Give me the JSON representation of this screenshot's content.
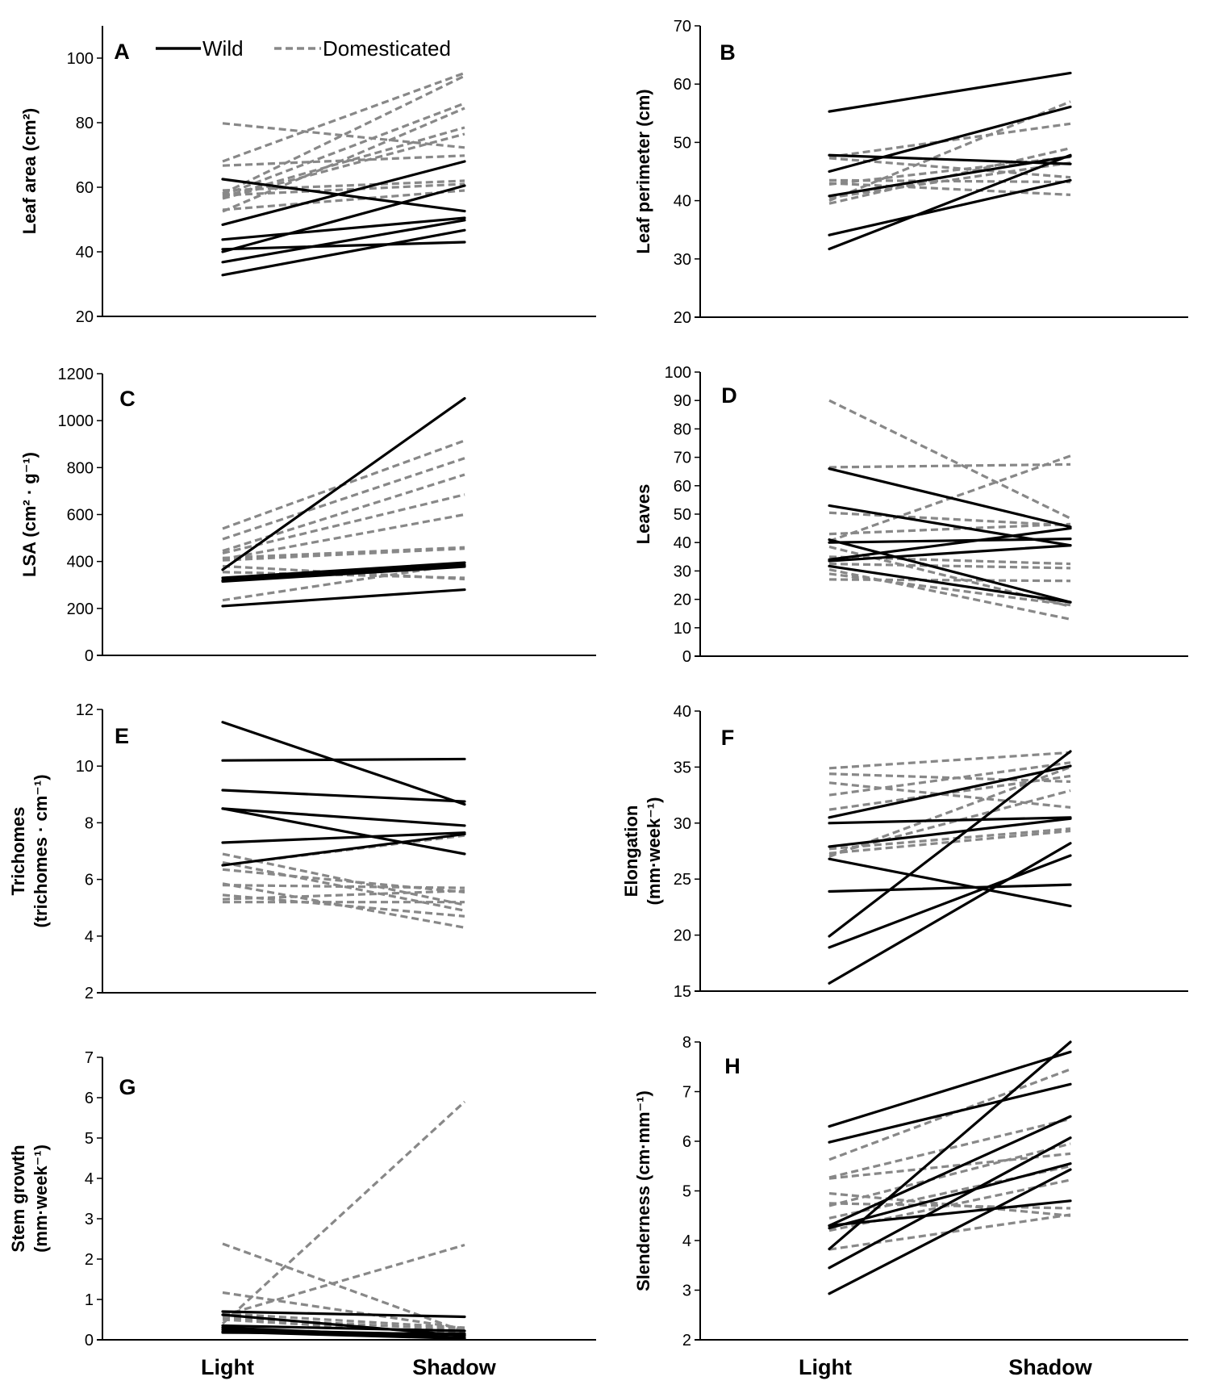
{
  "legend": {
    "wild": "Wild",
    "domesticated": "Domesticated",
    "placement": "top (inside panel A)"
  },
  "colors": {
    "wild": "#000000",
    "domesticated": "#888888"
  },
  "x_categories": [
    "Light",
    "Shadow"
  ],
  "chart_data": [
    {
      "panel": "A",
      "type": "line",
      "ylabel": [
        "Leaf area (cm²)"
      ],
      "ylim": [
        20,
        110
      ],
      "yticks": [
        20,
        40,
        60,
        80,
        100
      ],
      "categories": [
        "Light",
        "Shadow"
      ],
      "series": [
        {
          "name": "Wild",
          "lines": [
            [
              62.5,
              52.6
            ],
            [
              48.4,
              68
            ],
            [
              43.8,
              50.5
            ],
            [
              40.8,
              43
            ],
            [
              40,
              60.5
            ],
            [
              36.8,
              49.8
            ],
            [
              32.8,
              46.7
            ]
          ]
        },
        {
          "name": "Domesticated",
          "lines": [
            [
              79.8,
              72.3
            ],
            [
              68,
              95.4
            ],
            [
              66.7,
              69.8
            ],
            [
              58,
              94.5
            ],
            [
              57.5,
              86
            ],
            [
              57,
              78.5
            ],
            [
              56.5,
              76.5
            ],
            [
              59,
              62
            ],
            [
              53,
              59
            ],
            [
              52.5,
              84.5
            ],
            [
              57.5,
              61
            ]
          ]
        }
      ]
    },
    {
      "panel": "B",
      "type": "line",
      "ylabel": [
        "Leaf perimeter (cm)"
      ],
      "ylim": [
        20,
        70
      ],
      "yticks": [
        20,
        30,
        40,
        50,
        60,
        70
      ],
      "categories": [
        "Light",
        "Shadow"
      ],
      "series": [
        {
          "name": "Wild",
          "lines": [
            [
              55.3,
              61.9
            ],
            [
              47.8,
              46.3
            ],
            [
              45,
              56.1
            ],
            [
              40.8,
              47.6
            ],
            [
              34.1,
              43.5
            ],
            [
              31.7,
              47.8
            ]
          ]
        },
        {
          "name": "Domesticated",
          "lines": [
            [
              47.3,
              44
            ],
            [
              47.5,
              53.2
            ],
            [
              43.5,
              43.2
            ],
            [
              43,
              41
            ],
            [
              42.8,
              47.5
            ],
            [
              40,
              57
            ],
            [
              39.5,
              49
            ],
            [
              40.5,
              46.5
            ]
          ]
        }
      ]
    },
    {
      "panel": "C",
      "type": "line",
      "ylabel": [
        "LSA (cm² · g⁻¹)"
      ],
      "ylim": [
        0,
        1200
      ],
      "yticks": [
        0,
        200,
        400,
        600,
        800,
        1000,
        1200
      ],
      "categories": [
        "Light",
        "Shadow"
      ],
      "series": [
        {
          "name": "Wild",
          "lines": [
            [
              365,
              1095
            ],
            [
              330,
              395
            ],
            [
              320,
              385
            ],
            [
              315,
              378
            ],
            [
              210,
              280
            ]
          ]
        },
        {
          "name": "Domesticated",
          "lines": [
            [
              540,
              915
            ],
            [
              495,
              840
            ],
            [
              445,
              770
            ],
            [
              435,
              685
            ],
            [
              410,
              600
            ],
            [
              415,
              460
            ],
            [
              405,
              455
            ],
            [
              380,
              325
            ],
            [
              355,
              330
            ],
            [
              235,
              390
            ]
          ]
        }
      ]
    },
    {
      "panel": "D",
      "type": "line",
      "ylabel": [
        "Leaves"
      ],
      "ylim": [
        0,
        100
      ],
      "yticks": [
        0,
        10,
        20,
        30,
        40,
        50,
        60,
        70,
        80,
        90,
        100
      ],
      "categories": [
        "Light",
        "Shadow"
      ],
      "series": [
        {
          "name": "Wild",
          "lines": [
            [
              66,
              45.5
            ],
            [
              53,
              39
            ],
            [
              41,
              19
            ],
            [
              40,
              41.3
            ],
            [
              34,
              45
            ],
            [
              33.5,
              39
            ],
            [
              31.7,
              19
            ]
          ]
        },
        {
          "name": "Domesticated",
          "lines": [
            [
              90,
              48.5
            ],
            [
              66.5,
              67.5
            ],
            [
              40.5,
              70.5
            ],
            [
              50.5,
              46
            ],
            [
              43,
              46.5
            ],
            [
              38.5,
              17.5
            ],
            [
              35,
              32.5
            ],
            [
              32.5,
              31
            ],
            [
              30.5,
              13
            ],
            [
              27,
              26.5
            ],
            [
              29,
              18
            ]
          ]
        }
      ]
    },
    {
      "panel": "E",
      "type": "line",
      "ylabel": [
        "Trichomes",
        "(trichomes · cm⁻¹)"
      ],
      "ylim": [
        2,
        12
      ],
      "yticks": [
        2,
        4,
        6,
        8,
        10,
        12
      ],
      "categories": [
        "Light",
        "Shadow"
      ],
      "series": [
        {
          "name": "Wild",
          "lines": [
            [
              11.55,
              8.65
            ],
            [
              10.2,
              10.25
            ],
            [
              9.15,
              8.75
            ],
            [
              8.5,
              7.9
            ],
            [
              8.5,
              6.9
            ],
            [
              7.3,
              7.65
            ],
            [
              6.5,
              7.6
            ]
          ]
        },
        {
          "name": "Domesticated",
          "lines": [
            [
              6.9,
              5.1
            ],
            [
              6.6,
              4.9
            ],
            [
              6.5,
              7.55
            ],
            [
              6.35,
              5.55
            ],
            [
              5.85,
              4.3
            ],
            [
              5.8,
              5.7
            ],
            [
              5.45,
              4.7
            ],
            [
              5.3,
              5.6
            ],
            [
              5.2,
              5.2
            ]
          ]
        }
      ]
    },
    {
      "panel": "F",
      "type": "line",
      "ylabel": [
        "Elongation",
        "(mm·week⁻¹)"
      ],
      "ylim": [
        15,
        40
      ],
      "yticks": [
        15,
        20,
        25,
        30,
        35,
        40
      ],
      "categories": [
        "Light",
        "Shadow"
      ],
      "series": [
        {
          "name": "Wild",
          "lines": [
            [
              30.5,
              35.1
            ],
            [
              30,
              30.5
            ],
            [
              27.9,
              30.4
            ],
            [
              26.8,
              22.6
            ],
            [
              23.9,
              24.5
            ],
            [
              19.9,
              36.4
            ],
            [
              18.9,
              27.1
            ],
            [
              15.7,
              28.2
            ]
          ]
        },
        {
          "name": "Domesticated",
          "lines": [
            [
              34.9,
              36.3
            ],
            [
              34.4,
              33.7
            ],
            [
              33.6,
              31.4
            ],
            [
              32.5,
              35.4
            ],
            [
              31.2,
              34.2
            ],
            [
              27.2,
              32.9
            ],
            [
              27.0,
              35.0
            ],
            [
              27.7,
              29.5
            ],
            [
              27.3,
              29.3
            ]
          ]
        }
      ]
    },
    {
      "panel": "G",
      "type": "line",
      "ylabel": [
        "Stem growth",
        "(mm·week⁻¹)"
      ],
      "ylim": [
        0,
        7
      ],
      "yticks": [
        0,
        1,
        2,
        3,
        4,
        5,
        6,
        7
      ],
      "categories": [
        "Light",
        "Shadow"
      ],
      "series": [
        {
          "name": "Wild",
          "lines": [
            [
              0.7,
              0.57
            ],
            [
              0.62,
              0.1
            ],
            [
              0.35,
              0.22
            ],
            [
              0.3,
              0.05
            ],
            [
              0.25,
              0.12
            ],
            [
              0.2,
              0.03
            ],
            [
              0.18,
              0.15
            ]
          ]
        },
        {
          "name": "Domesticated",
          "lines": [
            [
              2.38,
              0.2
            ],
            [
              0.4,
              5.9
            ],
            [
              0.6,
              2.35
            ],
            [
              1.17,
              0.28
            ],
            [
              0.55,
              0.25
            ],
            [
              0.65,
              0.3
            ],
            [
              0.5,
              0.15
            ]
          ]
        }
      ]
    },
    {
      "panel": "H",
      "type": "line",
      "ylabel": [
        "Slenderness (cm·mm⁻¹)"
      ],
      "ylim": [
        2,
        8
      ],
      "yticks": [
        2,
        3,
        4,
        5,
        6,
        7,
        8
      ],
      "categories": [
        "Light",
        "Shadow"
      ],
      "series": [
        {
          "name": "Wild",
          "lines": [
            [
              6.3,
              7.8
            ],
            [
              5.98,
              7.15
            ],
            [
              4.3,
              6.5
            ],
            [
              4.25,
              5.55
            ],
            [
              4.3,
              4.8
            ],
            [
              3.83,
              8.0
            ],
            [
              3.45,
              6.07
            ],
            [
              2.93,
              5.43
            ]
          ]
        },
        {
          "name": "Domesticated",
          "lines": [
            [
              5.63,
              7.45
            ],
            [
              5.27,
              6.45
            ],
            [
              5.25,
              5.75
            ],
            [
              4.95,
              4.5
            ],
            [
              4.75,
              4.65
            ],
            [
              4.7,
              5.95
            ],
            [
              4.45,
              5.5
            ],
            [
              4.2,
              5.22
            ],
            [
              3.82,
              4.52
            ]
          ]
        }
      ]
    }
  ]
}
